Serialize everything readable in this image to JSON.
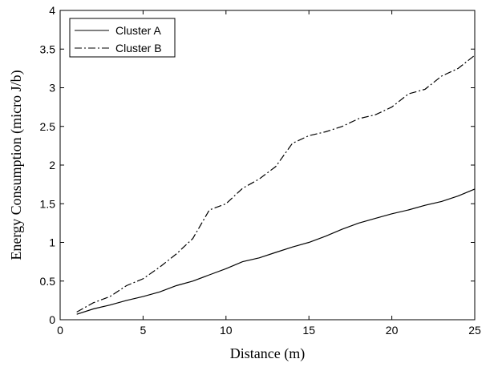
{
  "chart_data": {
    "type": "line",
    "xlabel": "Distance (m)",
    "ylabel": "Energy Consumption (micro J/b)",
    "xlim": [
      0,
      25
    ],
    "ylim": [
      0,
      4
    ],
    "xticks": [
      "0",
      "5",
      "10",
      "15",
      "20",
      "25"
    ],
    "yticks": [
      "0",
      "0.5",
      "1",
      "1.5",
      "2",
      "2.5",
      "3",
      "3.5",
      "4"
    ],
    "grid": false,
    "legend_position": "top-left",
    "series": [
      {
        "name": "Cluster A",
        "style": "solid",
        "x": [
          1,
          2,
          3,
          4,
          5,
          6,
          7,
          8,
          9,
          10,
          11,
          12,
          13,
          14,
          15,
          16,
          17,
          18,
          19,
          20,
          21,
          22,
          23,
          24,
          25
        ],
        "values": [
          0.07,
          0.14,
          0.19,
          0.25,
          0.3,
          0.36,
          0.44,
          0.5,
          0.58,
          0.66,
          0.75,
          0.8,
          0.87,
          0.94,
          1.0,
          1.08,
          1.17,
          1.25,
          1.31,
          1.37,
          1.42,
          1.48,
          1.53,
          1.6,
          1.69
        ]
      },
      {
        "name": "Cluster B",
        "style": "dashdot",
        "x": [
          1,
          2,
          3,
          4,
          5,
          6,
          7,
          8,
          9,
          10,
          11,
          12,
          13,
          14,
          15,
          16,
          17,
          18,
          19,
          20,
          21,
          22,
          23,
          24,
          25
        ],
        "values": [
          0.1,
          0.22,
          0.3,
          0.44,
          0.53,
          0.68,
          0.85,
          1.05,
          1.42,
          1.5,
          1.7,
          1.82,
          1.98,
          2.28,
          2.38,
          2.43,
          2.5,
          2.6,
          2.65,
          2.75,
          2.92,
          2.98,
          3.15,
          3.25,
          3.42
        ]
      }
    ]
  }
}
